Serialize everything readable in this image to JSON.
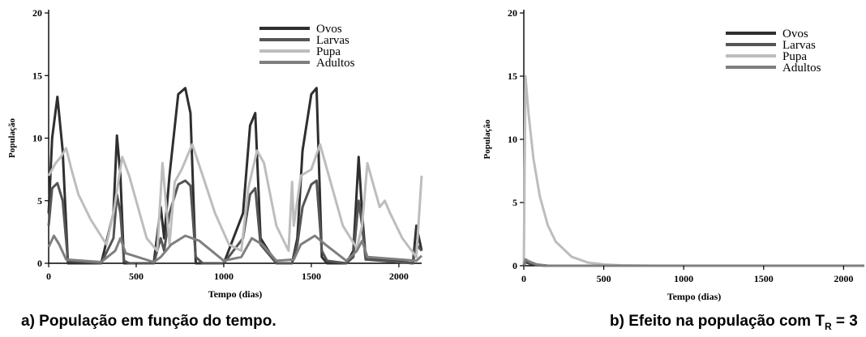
{
  "chart_data": [
    {
      "type": "line",
      "ylabel": "População",
      "xlabel": "Tempo (dias)",
      "xlim": [
        0,
        2130
      ],
      "ylim": [
        0,
        20
      ],
      "xticks": [
        0,
        500,
        1000,
        1500,
        2000
      ],
      "xtick_labels": [
        "0",
        "500",
        "1000",
        "1500",
        "2000"
      ],
      "yticks": [
        0,
        5,
        10,
        15,
        20
      ],
      "ytick_labels": [
        "0",
        "5",
        "10",
        "15",
        "20"
      ],
      "legend_position": "top-right",
      "grid": false,
      "caption": "a) População em função do tempo.",
      "series": [
        {
          "name": "Ovos",
          "color": "#2f2f2f",
          "x": [
            0,
            20,
            50,
            80,
            110,
            300,
            370,
            390,
            410,
            430,
            460,
            600,
            640,
            660,
            690,
            740,
            780,
            810,
            840,
            880,
            1000,
            1110,
            1150,
            1180,
            1210,
            1300,
            1390,
            1420,
            1450,
            1500,
            1530,
            1560,
            1590,
            1700,
            1740,
            1770,
            1790,
            1810,
            2080,
            2100,
            2130
          ],
          "y": [
            4,
            10,
            13.3,
            9,
            0,
            0,
            4,
            10.2,
            7,
            0,
            0,
            0,
            4.5,
            2,
            7,
            13.5,
            14,
            12,
            0,
            0,
            0,
            4,
            11,
            12,
            2,
            0,
            0,
            2,
            9,
            13.5,
            14,
            0.5,
            0,
            0,
            1,
            8.5,
            4,
            0.5,
            0,
            3,
            1
          ]
        },
        {
          "name": "Larvas",
          "color": "#555555",
          "x": [
            0,
            20,
            50,
            80,
            110,
            300,
            370,
            390,
            410,
            430,
            460,
            600,
            640,
            660,
            690,
            740,
            780,
            810,
            840,
            880,
            1000,
            1110,
            1150,
            1180,
            1210,
            1300,
            1390,
            1420,
            1450,
            1500,
            1530,
            1560,
            1590,
            1700,
            1740,
            1770,
            1790,
            1810,
            2080,
            2100,
            2130
          ],
          "y": [
            3,
            6,
            6.4,
            5,
            0.2,
            0,
            2,
            5.5,
            4,
            0.2,
            0,
            0,
            2,
            1,
            4,
            6.3,
            6.6,
            6.2,
            0.5,
            0,
            0,
            2,
            5.5,
            6,
            1.5,
            0,
            0,
            1.5,
            4.5,
            6.3,
            6.6,
            1,
            0.2,
            0,
            0.5,
            5,
            3,
            0.3,
            0,
            1.5,
            1
          ]
        },
        {
          "name": "Pupa",
          "color": "#bdbdbd",
          "x": [
            0,
            40,
            70,
            100,
            130,
            170,
            240,
            330,
            370,
            420,
            460,
            560,
            620,
            650,
            690,
            720,
            760,
            820,
            880,
            950,
            1030,
            1100,
            1140,
            1190,
            1230,
            1300,
            1370,
            1390,
            1400,
            1440,
            1500,
            1550,
            1600,
            1680,
            1760,
            1790,
            1820,
            1850,
            1890,
            1920,
            1950,
            2020,
            2100,
            2130
          ],
          "y": [
            7,
            8,
            8.5,
            9.2,
            7.5,
            5.5,
            3.5,
            1.5,
            4,
            8.5,
            7,
            2,
            1,
            8,
            1.5,
            6.5,
            7.5,
            9.5,
            7,
            4,
            1.5,
            1,
            6,
            9,
            8,
            3,
            1,
            6.5,
            3,
            7,
            7.5,
            9.5,
            7,
            3,
            1.2,
            3,
            8,
            6.5,
            4.5,
            5,
            4,
            2,
            0.5,
            7
          ]
        },
        {
          "name": "Adultos",
          "color": "#7f7f7f",
          "x": [
            0,
            30,
            60,
            100,
            300,
            380,
            410,
            440,
            600,
            640,
            700,
            780,
            860,
            1000,
            1100,
            1160,
            1220,
            1300,
            1400,
            1440,
            1520,
            1580,
            1700,
            1760,
            1790,
            1820,
            2100,
            2130
          ],
          "y": [
            1.3,
            2.2,
            1.5,
            0.3,
            0.1,
            1,
            2,
            0.8,
            0.1,
            0.5,
            1.5,
            2.2,
            1.8,
            0.2,
            0.5,
            2,
            1.5,
            0.2,
            0.3,
            1.5,
            2.2,
            1.5,
            0.2,
            1,
            1.8,
            0.5,
            0.2,
            0.6
          ]
        }
      ]
    },
    {
      "type": "line",
      "ylabel": "População",
      "xlabel": "Tempo (dias)",
      "xlim": [
        0,
        2130
      ],
      "ylim": [
        0,
        20
      ],
      "xticks": [
        0,
        500,
        1000,
        1500,
        2000
      ],
      "xtick_labels": [
        "0",
        "500",
        "1000",
        "1500",
        "2000"
      ],
      "yticks": [
        0,
        5,
        10,
        15,
        20
      ],
      "ytick_labels": [
        "0",
        "5",
        "10",
        "15",
        "20"
      ],
      "legend_position": "top-right",
      "grid": false,
      "caption_main": "b) Efeito na população com T",
      "caption_sub": "R",
      "caption_tail": " = 3",
      "series": [
        {
          "name": "Ovos",
          "color": "#2f2f2f",
          "x": [
            0,
            10,
            40,
            80,
            150,
            2130
          ],
          "y": [
            0,
            0.3,
            0.15,
            0.05,
            0,
            0
          ]
        },
        {
          "name": "Larvas",
          "color": "#555555",
          "x": [
            0,
            10,
            40,
            80,
            150,
            2130
          ],
          "y": [
            0,
            0.4,
            0.2,
            0.05,
            0,
            0
          ]
        },
        {
          "name": "Pupa",
          "color": "#bdbdbd",
          "x": [
            0,
            10,
            30,
            60,
            100,
            150,
            200,
            300,
            400,
            500,
            600,
            800,
            2130
          ],
          "y": [
            0,
            15,
            12,
            8.5,
            5.5,
            3.2,
            1.9,
            0.7,
            0.25,
            0.1,
            0.03,
            0,
            0
          ]
        },
        {
          "name": "Adultos",
          "color": "#7f7f7f",
          "x": [
            0,
            10,
            40,
            80,
            150,
            2130
          ],
          "y": [
            0,
            0.5,
            0.3,
            0.1,
            0,
            0
          ]
        }
      ]
    }
  ]
}
